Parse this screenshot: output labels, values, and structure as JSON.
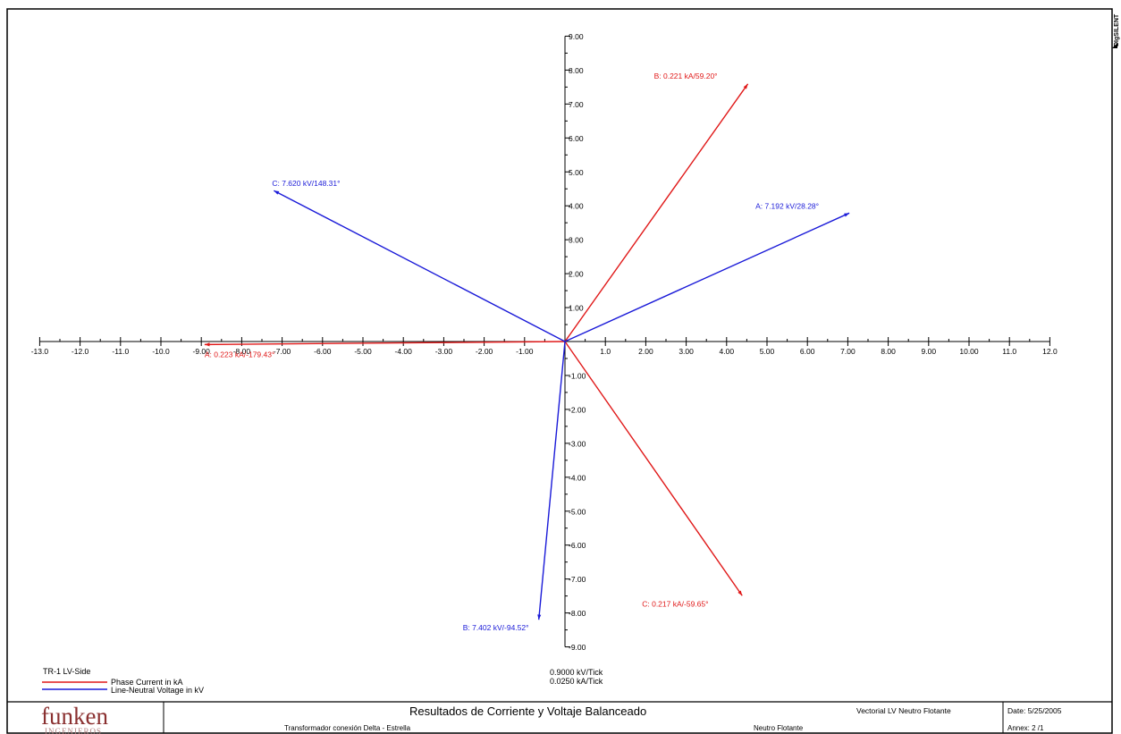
{
  "brand_mark": "DIgSILENT",
  "colors": {
    "current": "#e01818",
    "voltage": "#1a1ad8",
    "axis": "#000000",
    "logo": "#8a3030"
  },
  "chart_data": {
    "type": "phasor",
    "x_ticks": [
      "-13.0",
      "-12.0",
      "-11.0",
      "-10.0",
      "-9.00",
      "-8.00",
      "-7.00",
      "-6.00",
      "-5.00",
      "-4.00",
      "-3.00",
      "-2.00",
      "-1.00",
      "1.0",
      "2.00",
      "3.00",
      "4.00",
      "5.00",
      "6.00",
      "7.00",
      "8.00",
      "9.00",
      "10.00",
      "11.0",
      "12.0"
    ],
    "y_ticks": [
      "9.00",
      "8.00",
      "7.00",
      "6.00",
      "5.00",
      "4.00",
      "3.00",
      "2.00",
      "1.00",
      "-1.00",
      "-2.00",
      "-3.00",
      "-4.00",
      "-5.00",
      "-6.00",
      "-7.00",
      "-8.00",
      "-9.00"
    ],
    "scale_voltage": "0.9000 kV/Tick",
    "scale_current": "0.0250 kA/Tick",
    "legend_title": "TR-1 LV-Side",
    "series": [
      {
        "name": "Phase Current in kA",
        "color": "#e01818",
        "ticks_per_unit": 40,
        "phasors": [
          {
            "phase": "A",
            "magnitude": 0.223,
            "angle": -179.43,
            "label": "A: 0.223 kA/-179.43°"
          },
          {
            "phase": "B",
            "magnitude": 0.221,
            "angle": 59.2,
            "label": "B: 0.221 kA/59.20°"
          },
          {
            "phase": "C",
            "magnitude": 0.217,
            "angle": -59.65,
            "label": "C: 0.217 kA/-59.65°"
          }
        ]
      },
      {
        "name": "Line-Neutral Voltage in kV",
        "color": "#1a1ad8",
        "ticks_per_unit": 1.1111,
        "phasors": [
          {
            "phase": "A",
            "magnitude": 7.192,
            "angle": 28.28,
            "label": "A: 7.192 kV/28.28°"
          },
          {
            "phase": "B",
            "magnitude": 7.402,
            "angle": -94.52,
            "label": "B: 7.402 kV/-94.52°"
          },
          {
            "phase": "C",
            "magnitude": 7.62,
            "angle": 148.31,
            "label": "C: 7.620 kV/148.31°"
          }
        ]
      }
    ]
  },
  "title_block": {
    "logo_text": "funken",
    "logo_subtext": "INGENIEROS",
    "title": "Resultados de Corriente y Voltaje Balanceado",
    "subtitle": "Transformador conexión Delta - Estrella",
    "study_case": "Vectorial LV Neutro Flotante",
    "study_note": "Neutro Flotante",
    "date": "Date:  5/25/2005",
    "annex": "Annex: 2 /1"
  }
}
